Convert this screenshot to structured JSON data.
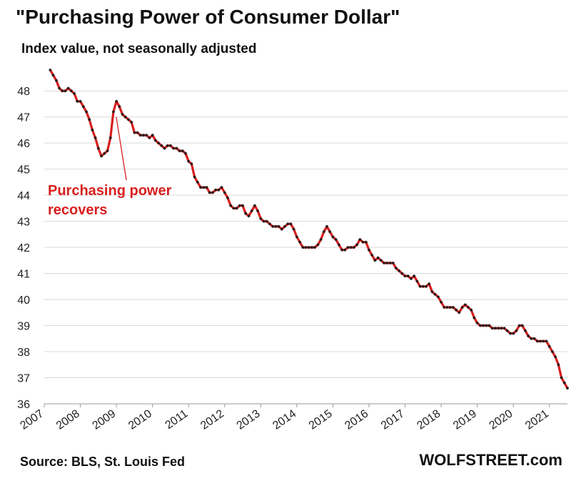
{
  "header": {
    "title": "\"Purchasing  Power of Consumer Dollar\"",
    "subtitle": "Index value, not seasonally adjusted"
  },
  "footer": {
    "source": "Source: BLS, St. Louis Fed",
    "brand": "WOLFSTREET.com"
  },
  "colors": {
    "line": "#d81e1e",
    "marker": "#2a1a1a",
    "grid": "#d9d9d9",
    "annotation": "#d81e1e"
  },
  "chart_data": {
    "type": "line",
    "title": "\"Purchasing  Power of Consumer Dollar\"",
    "subtitle": "Index value, not seasonally adjusted",
    "xlabel": "",
    "ylabel": "",
    "ylim": [
      36,
      48.8
    ],
    "xlim": [
      "2007-01",
      "2021-07"
    ],
    "grid": "horizontal",
    "legend": "none",
    "y_ticks": [
      36,
      37,
      38,
      39,
      40,
      41,
      42,
      43,
      44,
      45,
      46,
      47,
      48
    ],
    "x_ticks": [
      "2007",
      "2008",
      "2009",
      "2010",
      "2011",
      "2012",
      "2013",
      "2014",
      "2015",
      "2016",
      "2017",
      "2018",
      "2019",
      "2020",
      "2021"
    ],
    "annotation": {
      "lines": [
        "Purchasing power",
        "recovers"
      ],
      "points_to": [
        "2008-12",
        47.0
      ]
    },
    "series": [
      {
        "x": [
          "2007-03",
          "2007-04",
          "2007-05",
          "2007-06",
          "2007-07",
          "2007-08",
          "2007-09",
          "2007-10",
          "2007-11",
          "2007-12",
          "2008-01",
          "2008-02",
          "2008-03",
          "2008-04",
          "2008-05",
          "2008-06",
          "2008-07",
          "2008-08",
          "2008-09",
          "2008-10",
          "2008-11",
          "2008-12",
          "2009-01",
          "2009-02",
          "2009-03",
          "2009-04",
          "2009-05",
          "2009-06",
          "2009-07",
          "2009-08",
          "2009-09",
          "2009-10",
          "2009-11",
          "2009-12",
          "2010-01",
          "2010-02",
          "2010-03",
          "2010-04",
          "2010-05",
          "2010-06",
          "2010-07",
          "2010-08",
          "2010-09",
          "2010-10",
          "2010-11",
          "2010-12",
          "2011-01",
          "2011-02",
          "2011-03",
          "2011-04",
          "2011-05",
          "2011-06",
          "2011-07",
          "2011-08",
          "2011-09",
          "2011-10",
          "2011-11",
          "2011-12",
          "2012-01",
          "2012-02",
          "2012-03",
          "2012-04",
          "2012-05",
          "2012-06",
          "2012-07",
          "2012-08",
          "2012-09",
          "2012-10",
          "2012-11",
          "2012-12",
          "2013-01",
          "2013-02",
          "2013-03",
          "2013-04",
          "2013-05",
          "2013-06",
          "2013-07",
          "2013-08",
          "2013-09",
          "2013-10",
          "2013-11",
          "2013-12",
          "2014-01",
          "2014-02",
          "2014-03",
          "2014-04",
          "2014-05",
          "2014-06",
          "2014-07",
          "2014-08",
          "2014-09",
          "2014-10",
          "2014-11",
          "2014-12",
          "2015-01",
          "2015-02",
          "2015-03",
          "2015-04",
          "2015-05",
          "2015-06",
          "2015-07",
          "2015-08",
          "2015-09",
          "2015-10",
          "2015-11",
          "2015-12",
          "2016-01",
          "2016-02",
          "2016-03",
          "2016-04",
          "2016-05",
          "2016-06",
          "2016-07",
          "2016-08",
          "2016-09",
          "2016-10",
          "2016-11",
          "2016-12",
          "2017-01",
          "2017-02",
          "2017-03",
          "2017-04",
          "2017-05",
          "2017-06",
          "2017-07",
          "2017-08",
          "2017-09",
          "2017-10",
          "2017-11",
          "2017-12",
          "2018-01",
          "2018-02",
          "2018-03",
          "2018-04",
          "2018-05",
          "2018-06",
          "2018-07",
          "2018-08",
          "2018-09",
          "2018-10",
          "2018-11",
          "2018-12",
          "2019-01",
          "2019-02",
          "2019-03",
          "2019-04",
          "2019-05",
          "2019-06",
          "2019-07",
          "2019-08",
          "2019-09",
          "2019-10",
          "2019-11",
          "2019-12",
          "2020-01",
          "2020-02",
          "2020-03",
          "2020-04",
          "2020-05",
          "2020-06",
          "2020-07",
          "2020-08",
          "2020-09",
          "2020-10",
          "2020-11",
          "2020-12",
          "2021-01",
          "2021-02",
          "2021-03",
          "2021-04",
          "2021-05",
          "2021-06",
          "2021-07"
        ],
        "values": [
          48.8,
          48.6,
          48.4,
          48.1,
          48.0,
          48.0,
          48.1,
          48.0,
          47.9,
          47.6,
          47.6,
          47.4,
          47.2,
          46.9,
          46.5,
          46.2,
          45.8,
          45.5,
          45.6,
          45.7,
          46.2,
          47.2,
          47.6,
          47.4,
          47.1,
          47.0,
          46.9,
          46.8,
          46.4,
          46.4,
          46.3,
          46.3,
          46.3,
          46.2,
          46.3,
          46.1,
          46.0,
          45.9,
          45.8,
          45.9,
          45.9,
          45.8,
          45.8,
          45.7,
          45.7,
          45.6,
          45.3,
          45.2,
          44.7,
          44.5,
          44.3,
          44.3,
          44.3,
          44.1,
          44.1,
          44.2,
          44.2,
          44.3,
          44.1,
          43.9,
          43.6,
          43.5,
          43.5,
          43.6,
          43.6,
          43.3,
          43.2,
          43.4,
          43.6,
          43.4,
          43.1,
          43.0,
          43.0,
          42.9,
          42.8,
          42.8,
          42.8,
          42.7,
          42.8,
          42.9,
          42.9,
          42.7,
          42.4,
          42.2,
          42.0,
          42.0,
          42.0,
          42.0,
          42.0,
          42.1,
          42.3,
          42.6,
          42.8,
          42.6,
          42.4,
          42.3,
          42.1,
          41.9,
          41.9,
          42.0,
          42.0,
          42.0,
          42.1,
          42.3,
          42.2,
          42.2,
          41.9,
          41.7,
          41.5,
          41.6,
          41.5,
          41.4,
          41.4,
          41.4,
          41.4,
          41.2,
          41.1,
          41.0,
          40.9,
          40.9,
          40.8,
          40.9,
          40.7,
          40.5,
          40.5,
          40.5,
          40.6,
          40.3,
          40.2,
          40.1,
          39.9,
          39.7,
          39.7,
          39.7,
          39.7,
          39.6,
          39.5,
          39.7,
          39.8,
          39.7,
          39.6,
          39.3,
          39.1,
          39.0,
          39.0,
          39.0,
          39.0,
          38.9,
          38.9,
          38.9,
          38.9,
          38.9,
          38.8,
          38.7,
          38.7,
          38.8,
          39.0,
          39.0,
          38.8,
          38.6,
          38.5,
          38.5,
          38.4,
          38.4,
          38.4,
          38.4,
          38.2,
          38.0,
          37.8,
          37.5,
          37.0,
          36.8,
          36.6
        ]
      }
    ]
  }
}
